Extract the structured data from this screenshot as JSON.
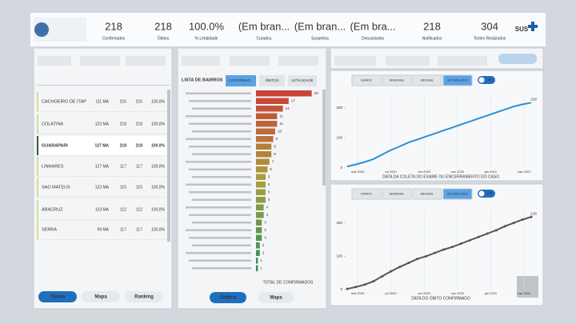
{
  "header": {
    "kpis": [
      {
        "value": "218",
        "label": "Confirmados"
      },
      {
        "value": "218",
        "label": "Óbitos"
      },
      {
        "value": "100.0%",
        "label": "% Letalidade"
      },
      {
        "value": "(Em bran...",
        "label": "Curados"
      },
      {
        "value": "(Em bran...",
        "label": "Suspeitos"
      },
      {
        "value": "(Em bra...",
        "label": "Descartados"
      },
      {
        "value": "218",
        "label": "Notificados"
      },
      {
        "value": "304",
        "label": "Testes Realizados"
      }
    ],
    "logo": "SUS"
  },
  "table": {
    "selected": 2,
    "rows": [
      [
        "CACHOEIRO DE ITAP",
        "111 MA",
        "216",
        "216",
        "100,0%"
      ],
      [
        "COLATINA",
        "123 MA",
        "218",
        "218",
        "100,0%"
      ],
      [
        "GUARAPARI",
        "127 MA",
        "218",
        "218",
        "100.0%"
      ],
      [
        "LINHARES",
        "127 MA",
        "117",
        "117",
        "100,0%"
      ],
      [
        "SAO MATEUS",
        "123 MA",
        "115",
        "115",
        "100,0%"
      ],
      [
        "ARACRUZ",
        "123 MA",
        "112",
        "112",
        "100,0%"
      ],
      [
        "SERRA",
        "99 MA",
        "117",
        "117",
        "100,0%"
      ]
    ],
    "buttons": [
      "Tabela",
      "Mapa",
      "Ranking"
    ]
  },
  "bairros": {
    "title": "LISTA DE BAIRROS",
    "tabs": [
      "CONFIRMAD...",
      "ÓBITOS",
      "LETALIDADE"
    ],
    "values": [
      29,
      17,
      14,
      11,
      11,
      10,
      9,
      8,
      8,
      7,
      6,
      5,
      5,
      5,
      5,
      4,
      4,
      3,
      3,
      3,
      2,
      2,
      1,
      1
    ],
    "xlim": [
      0,
      30
    ],
    "colors": [
      "#c8433a",
      "#a9a03a",
      "#2f8f5b"
    ],
    "footer": "TOTAL DE CONFIRMADOS",
    "buttons": [
      "Gráfico",
      "Mapa"
    ]
  },
  "charts": [
    {
      "tabs": [
        "DIÁRIO",
        "SEMANAL",
        "MENSAL",
        "ACUMULADO"
      ],
      "toggle": "LIN",
      "color": "#2b8fd6",
      "x_label": "DATA DA COLETA DO EXAME OU ENCERRAMENTO DO CASO",
      "xticks": [
        "mai 2020",
        "jul 2020",
        "set 2020",
        "nov 2020",
        "jan 2021",
        "mar 2021"
      ],
      "ylim": [
        0,
        240
      ],
      "yticks": [
        0,
        100,
        200
      ],
      "values": [
        5,
        12,
        20,
        30,
        45,
        60,
        72,
        85,
        95,
        105,
        115,
        125,
        135,
        145,
        155,
        165,
        175,
        185,
        195,
        205,
        212,
        218
      ]
    },
    {
      "tabs": [
        "DIÁRIO",
        "SEMANAL",
        "MENSAL",
        "ACUMULADO"
      ],
      "toggle": "LIN",
      "color": "#555555",
      "x_label": "DATA DO ÓBITO CONFIRMADO",
      "xticks": [
        "mai 2020",
        "jul 2020",
        "set 2020",
        "nov 2020",
        "jan 2021",
        "mar 2021"
      ],
      "ylim": [
        0,
        240
      ],
      "yticks": [
        0,
        100,
        200
      ],
      "values": [
        2,
        8,
        15,
        25,
        40,
        55,
        68,
        80,
        92,
        100,
        110,
        120,
        128,
        138,
        148,
        158,
        168,
        178,
        190,
        200,
        210,
        218
      ]
    }
  ]
}
